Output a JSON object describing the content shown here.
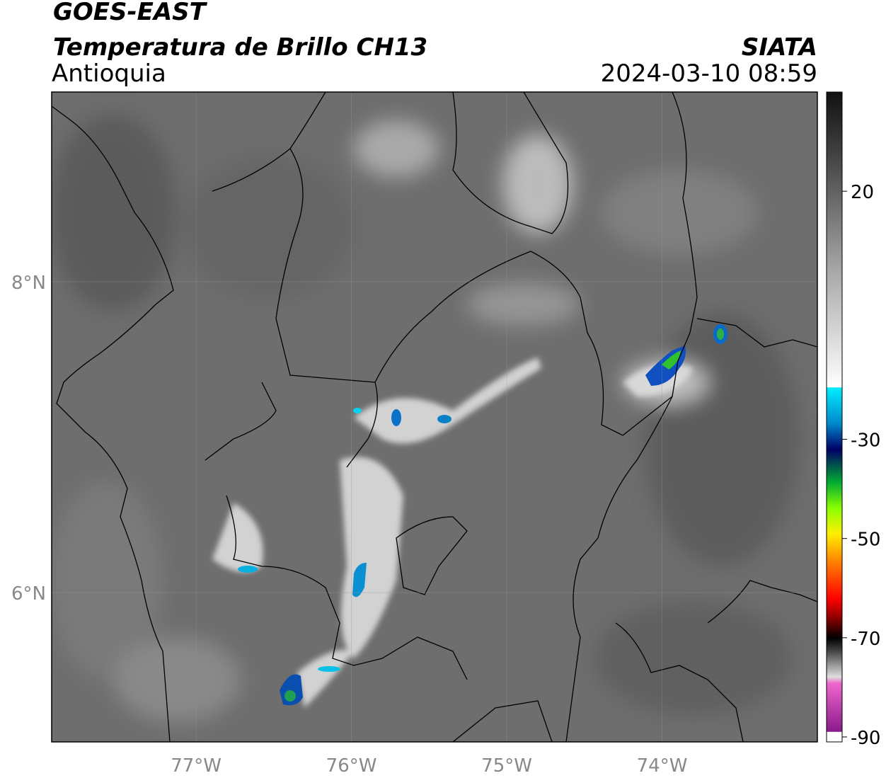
{
  "header": {
    "title": "GOES-EAST",
    "subtitle": "Temperatura de Brillo CH13",
    "region": "Antioquia",
    "source": "SIATA",
    "datetime": "2024-03-10 08:59"
  },
  "map": {
    "xlim": [
      -77.93,
      -73.0
    ],
    "ylim": [
      5.04,
      9.22
    ],
    "xticks": [
      {
        "value": -77,
        "label": "77°W"
      },
      {
        "value": -76,
        "label": "76°W"
      },
      {
        "value": -75,
        "label": "75°W"
      },
      {
        "value": -74,
        "label": "74°W"
      }
    ],
    "yticks": [
      {
        "value": 8,
        "label": "8°N"
      },
      {
        "value": 6,
        "label": "6°N"
      }
    ]
  },
  "colorbar": {
    "lim": [
      -91,
      40
    ],
    "ticks": [
      20,
      -30,
      -50,
      -70,
      -90
    ]
  }
}
